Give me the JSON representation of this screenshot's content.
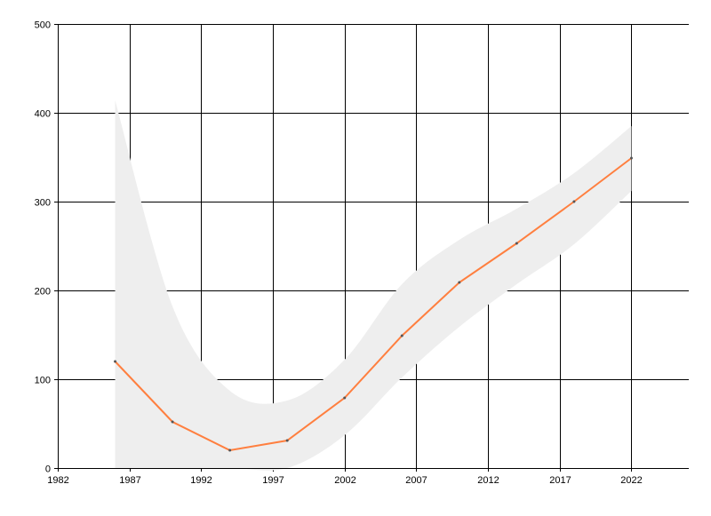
{
  "chart_data": {
    "type": "line",
    "title": "",
    "xlabel": "",
    "ylabel": "",
    "xlim": [
      1982,
      2026
    ],
    "ylim": [
      0,
      500
    ],
    "x_ticks": [
      1982,
      1987,
      1992,
      1997,
      2002,
      2007,
      2012,
      2017,
      2022
    ],
    "y_ticks": [
      0,
      100,
      200,
      300,
      400,
      500
    ],
    "grid": true,
    "x": [
      1986,
      1990,
      1994,
      1998,
      2002,
      2006,
      2010,
      2014,
      2018,
      2022
    ],
    "series": [
      {
        "values": [
          120,
          52,
          20,
          31,
          79,
          149,
          209,
          253,
          300,
          349
        ],
        "color": "#ff7f3f"
      }
    ],
    "band": {
      "upper": [
        414,
        182,
        87,
        76,
        122,
        207,
        257,
        292,
        332,
        385
      ],
      "lower": [
        0,
        0,
        0,
        0,
        37,
        102,
        159,
        207,
        252,
        312
      ],
      "color": "#eeeeee"
    }
  }
}
